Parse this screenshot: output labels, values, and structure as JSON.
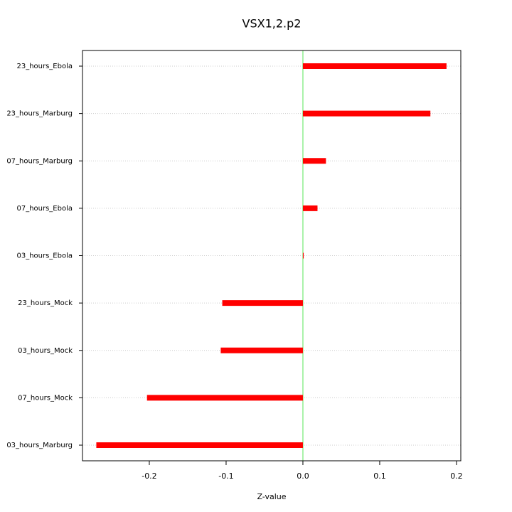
{
  "chart_data": {
    "type": "barh",
    "title": "VSX1,2.p2",
    "x_label": "Z-value",
    "categories": [
      "23_hours_Ebola",
      "23_hours_Marburg",
      "07_hours_Marburg",
      "07_hours_Ebola",
      "03_hours_Ebola",
      "23_hours_Mock",
      "03_hours_Mock",
      "07_hours_Mock",
      "03_hours_Marburg"
    ],
    "values": [
      0.187,
      0.166,
      0.03,
      0.019,
      0.001,
      -0.105,
      -0.107,
      -0.203,
      -0.269
    ],
    "color": "#ff0000",
    "xlim": [
      -0.287,
      0.2056
    ],
    "xticks": [
      -0.2,
      -0.1,
      {
        "value": 0,
        "label": "0.0"
      },
      0.1,
      0.2
    ],
    "reference_line": {
      "value": 0,
      "color": "#90ee90"
    },
    "grid": true
  }
}
